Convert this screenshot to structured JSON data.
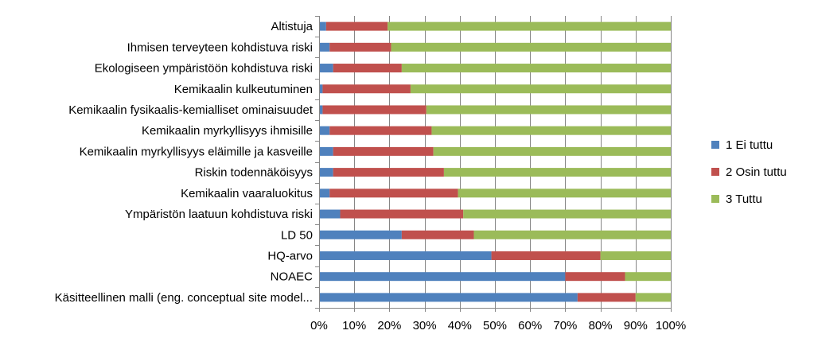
{
  "chart_data": {
    "type": "bar",
    "orientation": "horizontal",
    "stacked": "percent",
    "categories": [
      "Altistuja",
      "Ihmisen terveyteen kohdistuva riski",
      "Ekologiseen ympäristöön kohdistuva riski",
      "Kemikaalin kulkeutuminen",
      "Kemikaalin fysikaalis-kemialliset ominaisuudet",
      "Kemikaalin myrkyllisyys ihmisille",
      "Kemikaalin myrkyllisyys eläimille ja kasveille",
      "Riskin todennäköisyys",
      "Kemikaalin vaaraluokitus",
      "Ympäristön laatuun kohdistuva riski",
      "LD 50",
      "HQ-arvo",
      "NOAEC",
      "Käsitteellinen malli (eng. conceptual site model..."
    ],
    "series": [
      {
        "name": "1 Ei tuttu",
        "color": "#4F81BD",
        "values": [
          2,
          3,
          4,
          1,
          1,
          3,
          4,
          4,
          3,
          6,
          23.5,
          49,
          70,
          73.5
        ]
      },
      {
        "name": "2 Osin tuttu",
        "color": "#C0504D",
        "values": [
          17.5,
          17.5,
          19.5,
          25,
          29.5,
          29,
          28.5,
          31.5,
          36.5,
          35,
          20.5,
          31,
          17,
          16.5
        ]
      },
      {
        "name": "3 Tuttu",
        "color": "#9BBB59",
        "values": [
          80.5,
          79.5,
          76.5,
          74,
          69.5,
          68,
          67.5,
          64.5,
          60.5,
          59,
          56,
          20,
          13,
          10
        ]
      }
    ],
    "xlim": [
      0,
      100
    ],
    "x_ticks": [
      "0%",
      "10%",
      "20%",
      "30%",
      "40%",
      "50%",
      "60%",
      "70%",
      "80%",
      "90%",
      "100%"
    ],
    "gridlines": true,
    "legend_position": "right",
    "title": "",
    "xlabel": "",
    "ylabel": ""
  }
}
